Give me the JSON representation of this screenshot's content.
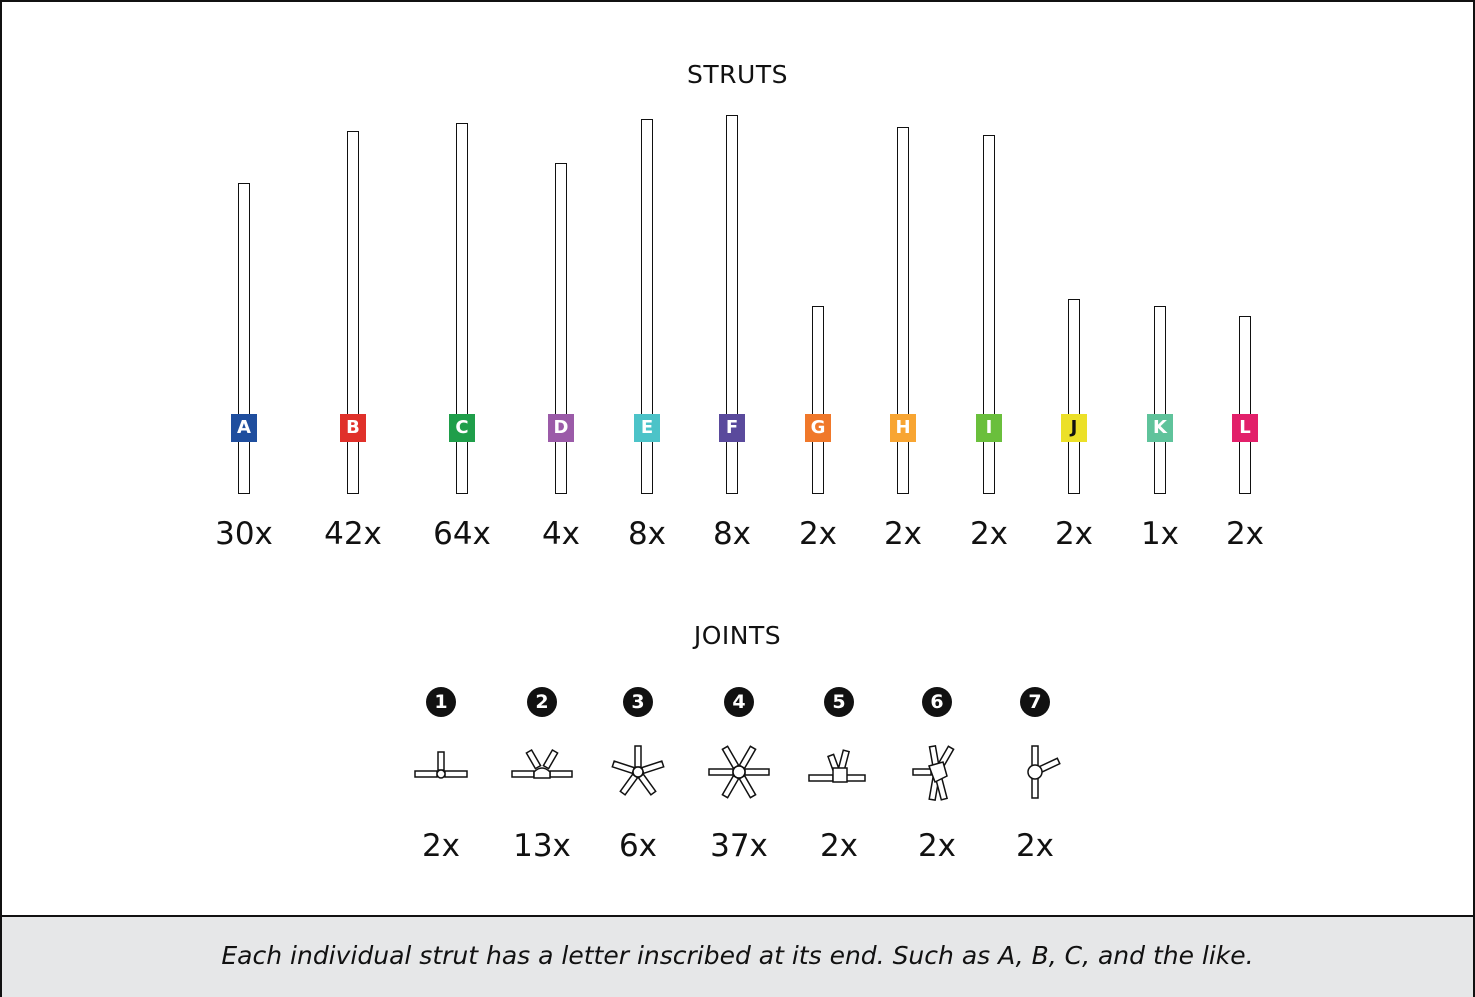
{
  "struts_title": "STRUTS",
  "joints_title": "JOINTS",
  "struts": [
    {
      "letter": "A",
      "qty": "30x",
      "color": "#1f4e9e"
    },
    {
      "letter": "B",
      "qty": "42x",
      "color": "#e0312a"
    },
    {
      "letter": "C",
      "qty": "64x",
      "color": "#1f9e4a"
    },
    {
      "letter": "D",
      "qty": "4x",
      "color": "#9b5ba8"
    },
    {
      "letter": "E",
      "qty": "8x",
      "color": "#4cc3c8"
    },
    {
      "letter": "F",
      "qty": "8x",
      "color": "#5a4a9c"
    },
    {
      "letter": "G",
      "qty": "2x",
      "color": "#f0782a"
    },
    {
      "letter": "H",
      "qty": "2x",
      "color": "#f8a532"
    },
    {
      "letter": "I",
      "qty": "2x",
      "color": "#6abf3c"
    },
    {
      "letter": "J",
      "qty": "2x",
      "color": "#ece028"
    },
    {
      "letter": "K",
      "qty": "1x",
      "color": "#5fc39b"
    },
    {
      "letter": "L",
      "qty": "2x",
      "color": "#e2206a"
    }
  ],
  "joints": [
    {
      "number": "1",
      "qty": "2x",
      "icon": "t-joint-icon"
    },
    {
      "number": "2",
      "qty": "13x",
      "icon": "hub-v-joint-icon"
    },
    {
      "number": "3",
      "qty": "6x",
      "icon": "star-joint-icon"
    },
    {
      "number": "4",
      "qty": "37x",
      "icon": "six-way-joint-icon"
    },
    {
      "number": "5",
      "qty": "2x",
      "icon": "angled-joint-icon"
    },
    {
      "number": "6",
      "qty": "2x",
      "icon": "cluster-joint-icon"
    },
    {
      "number": "7",
      "qty": "2x",
      "icon": "y-joint-icon"
    }
  ],
  "footer_text": "Each individual strut has a letter inscribed at its end. Such as A, B, C, and the like."
}
